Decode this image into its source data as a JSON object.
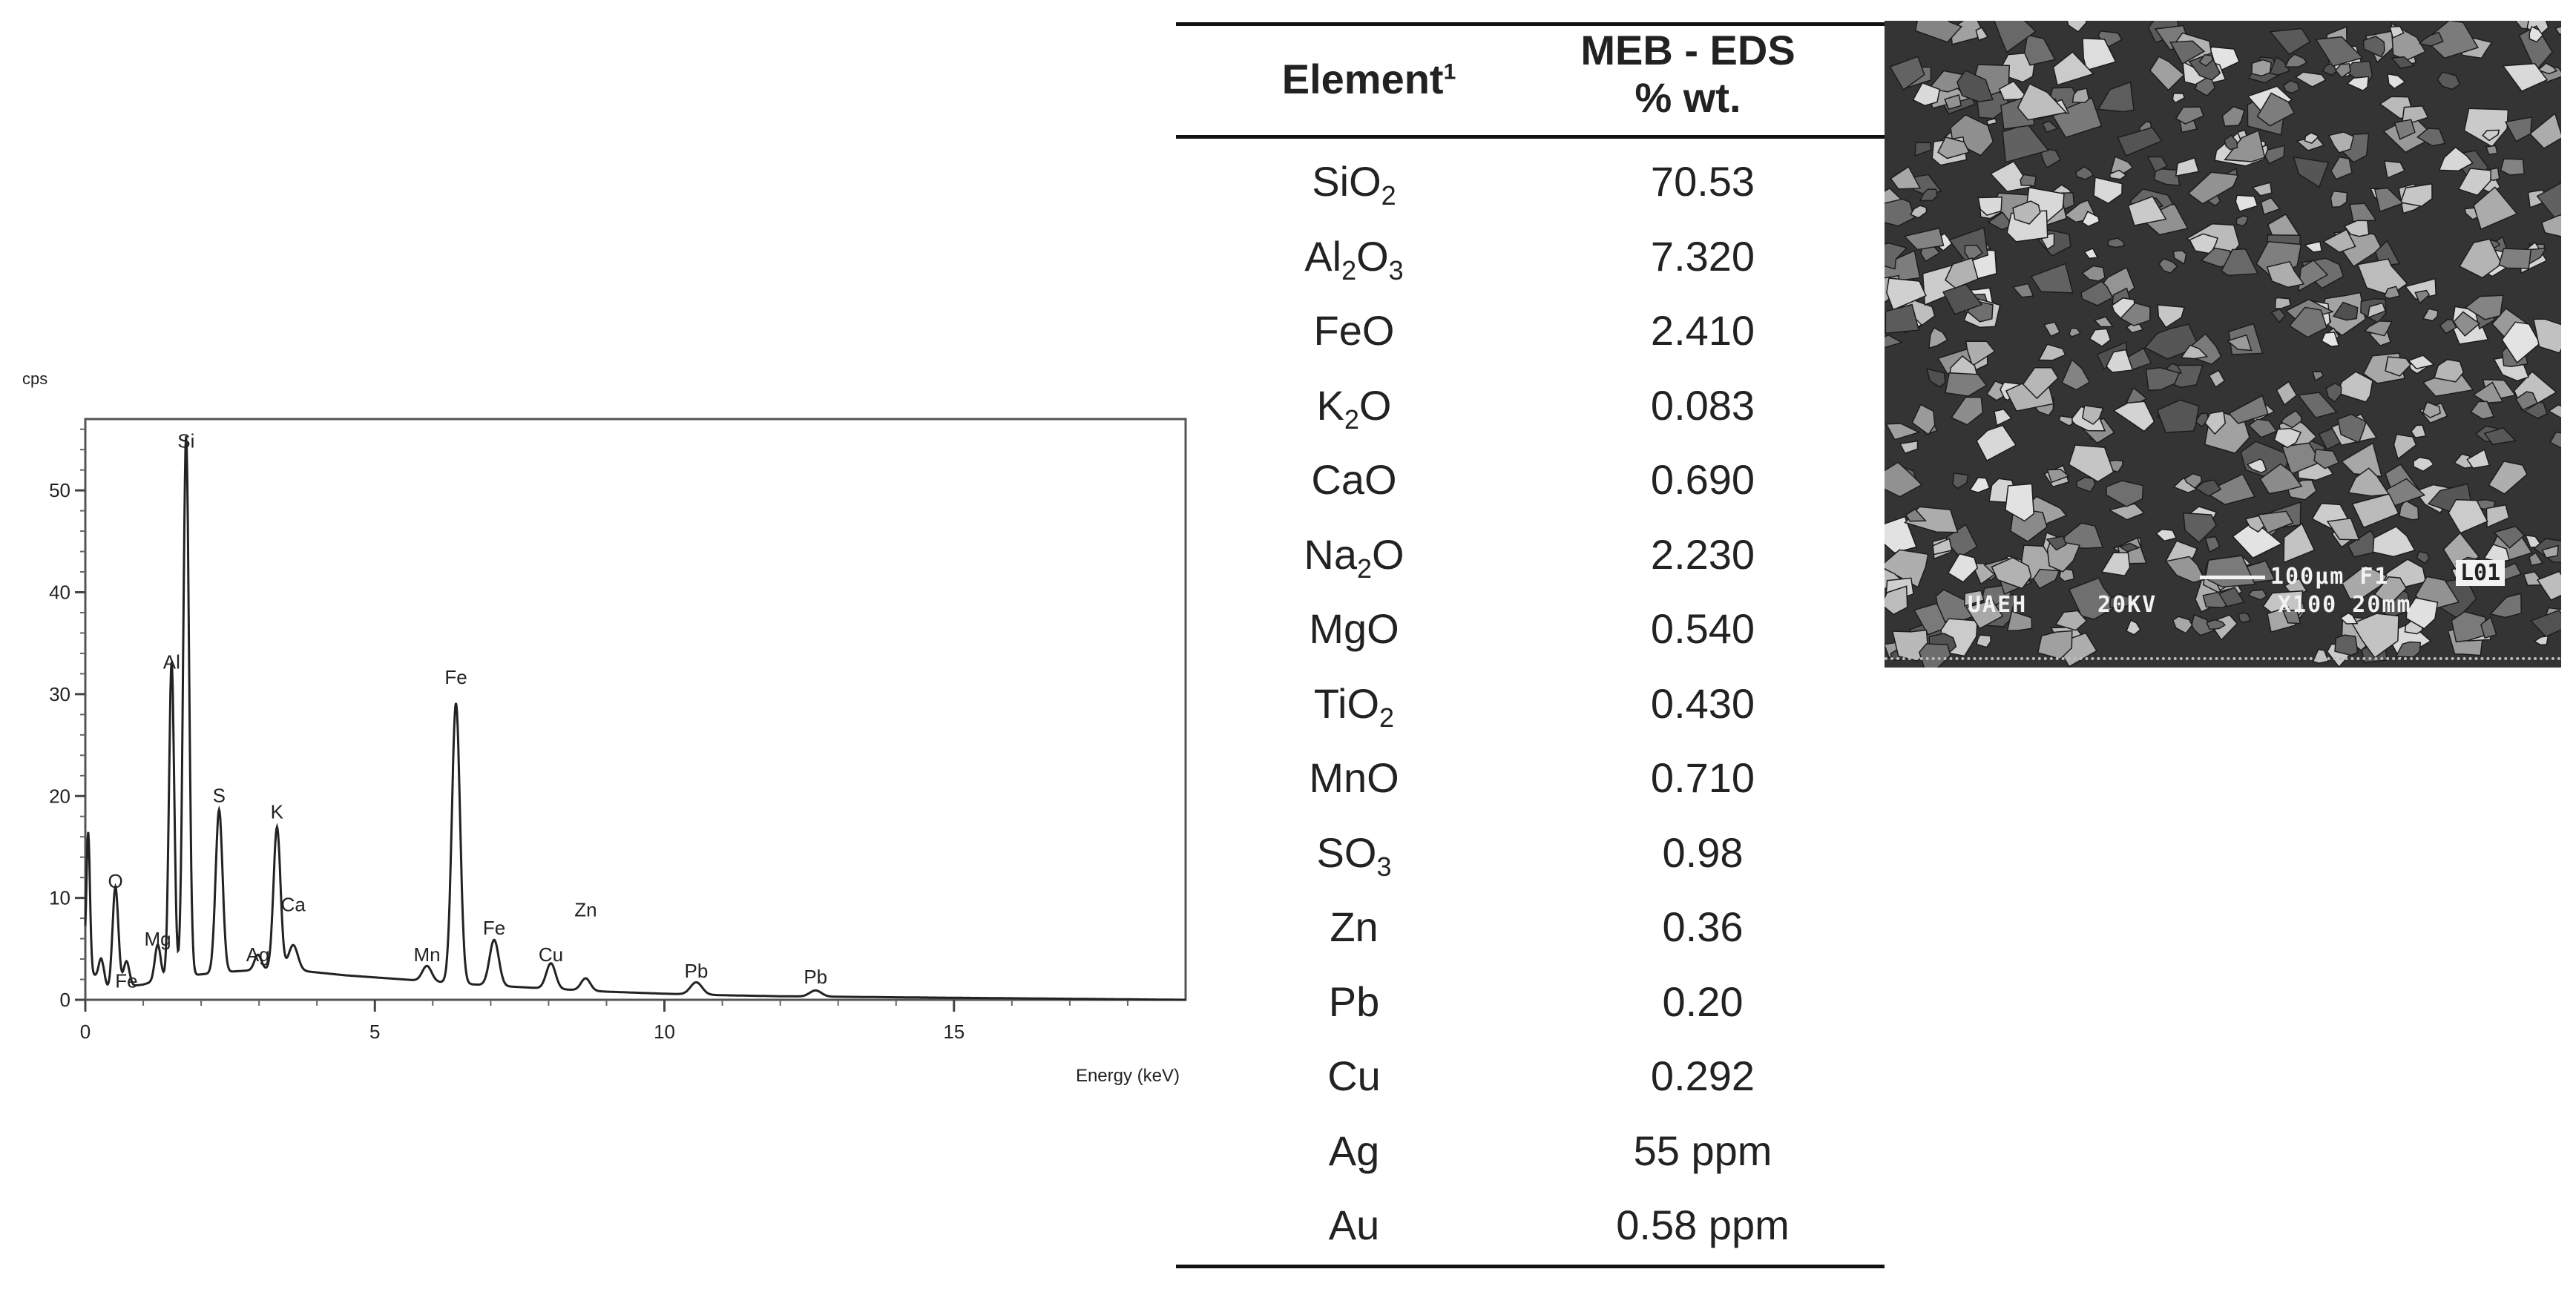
{
  "chart_data": {
    "type": "line",
    "ylabel": "cps",
    "xlabel": "Energy (keV)",
    "xlim": [
      0,
      19
    ],
    "ylim": [
      0,
      57
    ],
    "x_ticks": [
      0,
      5,
      10,
      15
    ],
    "y_ticks": [
      0,
      10,
      20,
      30,
      40,
      50
    ],
    "baseline": [
      [
        0.0,
        4
      ],
      [
        0.3,
        0.8
      ],
      [
        0.6,
        1.2
      ],
      [
        1.0,
        1.5
      ],
      [
        1.3,
        2.0
      ],
      [
        2.0,
        2.5
      ],
      [
        2.6,
        2.8
      ],
      [
        3.2,
        3.0
      ],
      [
        3.8,
        2.8
      ],
      [
        4.5,
        2.4
      ],
      [
        5.0,
        2.2
      ],
      [
        5.5,
        2.0
      ],
      [
        6.2,
        1.7
      ],
      [
        7.0,
        1.4
      ],
      [
        8.0,
        1.1
      ],
      [
        9.0,
        0.8
      ],
      [
        10.0,
        0.6
      ],
      [
        11.0,
        0.45
      ],
      [
        12.0,
        0.35
      ],
      [
        13.0,
        0.3
      ],
      [
        14.0,
        0.25
      ],
      [
        15.0,
        0.2
      ],
      [
        16.0,
        0.15
      ],
      [
        17.0,
        0.1
      ],
      [
        18.0,
        0.05
      ],
      [
        19.0,
        0.0
      ]
    ],
    "peaks": [
      {
        "e": 0.05,
        "h": 13,
        "w": 0.03
      },
      {
        "e": 0.28,
        "h": 3,
        "w": 0.05
      },
      {
        "e": 0.52,
        "h": 10,
        "w": 0.05
      },
      {
        "e": 0.71,
        "h": 2.5,
        "w": 0.05
      },
      {
        "e": 1.25,
        "h": 3.5,
        "w": 0.05
      },
      {
        "e": 1.49,
        "h": 31,
        "w": 0.045
      },
      {
        "e": 1.74,
        "h": 53,
        "w": 0.05
      },
      {
        "e": 2.31,
        "h": 16,
        "w": 0.06
      },
      {
        "e": 2.98,
        "h": 1.5,
        "w": 0.06
      },
      {
        "e": 3.31,
        "h": 14,
        "w": 0.06
      },
      {
        "e": 3.59,
        "h": 2.5,
        "w": 0.08
      },
      {
        "e": 5.9,
        "h": 1.5,
        "w": 0.08
      },
      {
        "e": 6.4,
        "h": 27.5,
        "w": 0.07
      },
      {
        "e": 7.06,
        "h": 4.5,
        "w": 0.08
      },
      {
        "e": 8.04,
        "h": 2.5,
        "w": 0.08
      },
      {
        "e": 8.64,
        "h": 1.2,
        "w": 0.08
      },
      {
        "e": 10.55,
        "h": 1.2,
        "w": 0.1
      },
      {
        "e": 12.61,
        "h": 0.6,
        "w": 0.1
      }
    ],
    "peak_labels": [
      {
        "text": "O",
        "e": 0.52,
        "y": 11.0
      },
      {
        "text": "Fe",
        "e": 0.71,
        "y": 1.2
      },
      {
        "text": "Mg",
        "e": 1.25,
        "y": 5.3
      },
      {
        "text": "Al",
        "e": 1.49,
        "y": 32.5
      },
      {
        "text": "Si",
        "e": 1.74,
        "y": 54.2
      },
      {
        "text": "S",
        "e": 2.31,
        "y": 19.4
      },
      {
        "text": "Ag",
        "e": 2.98,
        "y": 3.8
      },
      {
        "text": "K",
        "e": 3.31,
        "y": 17.8
      },
      {
        "text": "Ca",
        "e": 3.59,
        "y": 8.7
      },
      {
        "text": "Mn",
        "e": 5.9,
        "y": 3.8
      },
      {
        "text": "Fe",
        "e": 6.4,
        "y": 31.0
      },
      {
        "text": "Fe",
        "e": 7.06,
        "y": 6.4
      },
      {
        "text": "Cu",
        "e": 8.04,
        "y": 3.8
      },
      {
        "text": "Zn",
        "e": 8.64,
        "y": 8.2
      },
      {
        "text": "Pb",
        "e": 10.55,
        "y": 2.2
      },
      {
        "text": "Pb",
        "e": 12.61,
        "y": 1.6
      }
    ]
  },
  "table": {
    "header_element": "Element",
    "header_element_sup": "1",
    "header_value_line1": "MEB - EDS",
    "header_value_line2": "% wt.",
    "rows": [
      {
        "el": "SiO",
        "sub": "2",
        "tail": "",
        "value": "70.53"
      },
      {
        "el": "Al",
        "sub": "2",
        "tail": "O₃",
        "value": "7.320"
      },
      {
        "el": "FeO",
        "sub": "",
        "tail": "",
        "value": "2.410"
      },
      {
        "el": "K",
        "sub": "2",
        "tail": "O",
        "value": "0.083"
      },
      {
        "el": "CaO",
        "sub": "",
        "tail": "",
        "value": "0.690"
      },
      {
        "el": "Na",
        "sub": "2",
        "tail": "O",
        "value": "2.230"
      },
      {
        "el": "MgO",
        "sub": "",
        "tail": "",
        "value": "0.540"
      },
      {
        "el": "TiO",
        "sub": "2",
        "tail": "",
        "value": "0.430"
      },
      {
        "el": "MnO",
        "sub": "",
        "tail": "",
        "value": "0.710"
      },
      {
        "el": "SO",
        "sub": "3",
        "tail": "",
        "value": "0.98"
      },
      {
        "el": "Zn",
        "sub": "",
        "tail": "",
        "value": "0.36"
      },
      {
        "el": "Pb",
        "sub": "",
        "tail": "",
        "value": "0.20"
      },
      {
        "el": "Cu",
        "sub": "",
        "tail": "",
        "value": "0.292"
      },
      {
        "el": "Ag",
        "sub": "",
        "tail": "",
        "value": "55 ppm"
      },
      {
        "el": "Au",
        "sub": "",
        "tail": "",
        "value": "0.58 ppm"
      }
    ]
  },
  "sem": {
    "label_a": "UAEH",
    "label_b": "20KV",
    "scale_text": "100μm F1",
    "boxed_text": "L01",
    "label_c": "X100 20mm"
  }
}
